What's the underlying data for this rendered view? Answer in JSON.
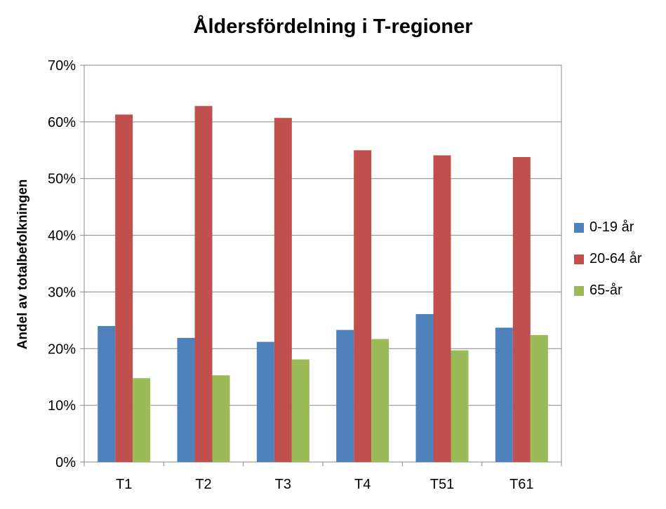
{
  "chart_data": {
    "type": "bar",
    "title": "Åldersfördelning i T-regioner",
    "xlabel": "",
    "ylabel": "Andel av totalbefolkningen",
    "categories": [
      "T1",
      "T2",
      "T3",
      "T4",
      "T51",
      "T61"
    ],
    "series": [
      {
        "name": "0-19 år",
        "color": "#4f81bd",
        "values": [
          0.24,
          0.219,
          0.212,
          0.233,
          0.261,
          0.237
        ]
      },
      {
        "name": "20-64 år",
        "color": "#c0504d",
        "values": [
          0.613,
          0.628,
          0.607,
          0.55,
          0.541,
          0.538
        ]
      },
      {
        "name": "65-år",
        "color": "#9bbb59",
        "values": [
          0.148,
          0.153,
          0.181,
          0.217,
          0.197,
          0.224
        ]
      }
    ],
    "ylim": [
      0,
      0.7
    ],
    "yticks": [
      "0%",
      "10%",
      "20%",
      "30%",
      "40%",
      "50%",
      "60%",
      "70%"
    ],
    "grid": true,
    "legend_position": "right"
  }
}
